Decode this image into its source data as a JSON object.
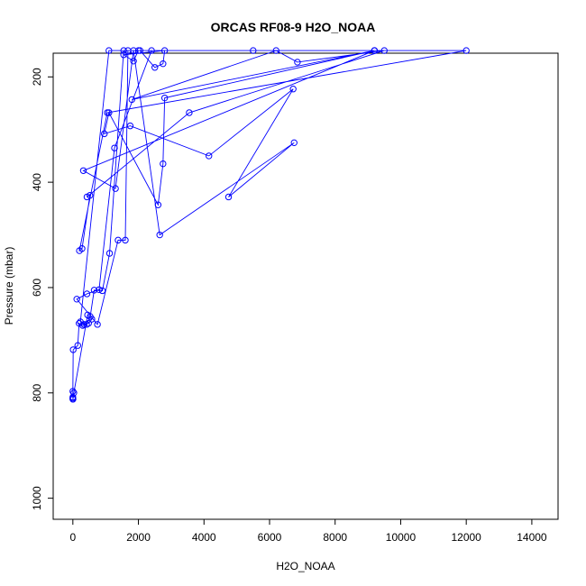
{
  "chart_data": {
    "type": "line",
    "title": "ORCAS RF08-9 H2O_NOAA",
    "xlabel": "H2O_NOAA",
    "ylabel": "Pressure (mbar)",
    "xlim": [
      -600,
      14800
    ],
    "ylim": [
      1040,
      155
    ],
    "y_reversed": true,
    "x_ticks": [
      0,
      2000,
      4000,
      6000,
      8000,
      10000,
      12000,
      14000
    ],
    "y_ticks": [
      200,
      400,
      600,
      800,
      1000
    ],
    "grid": false,
    "legend": "none",
    "series": [
      {
        "color": "#0000ff",
        "marker": "open-circle",
        "points": [
          [
            0,
            812
          ],
          [
            0,
            810
          ],
          [
            0,
            808
          ],
          [
            0,
            797
          ],
          [
            10,
            718
          ],
          [
            150,
            710
          ],
          [
            190,
            668
          ],
          [
            300,
            672
          ],
          [
            420,
            670
          ],
          [
            530,
            655
          ],
          [
            650,
            605
          ],
          [
            900,
            606
          ],
          [
            1120,
            535
          ],
          [
            1550,
            150
          ],
          [
            2050,
            150
          ],
          [
            2500,
            182
          ],
          [
            2750,
            175
          ],
          [
            2800,
            150
          ],
          [
            1550,
            158
          ],
          [
            1850,
            170
          ],
          [
            2000,
            150
          ],
          [
            12000,
            150
          ],
          [
            1050,
            268
          ],
          [
            200,
            530
          ],
          [
            280,
            526
          ],
          [
            520,
            425
          ],
          [
            430,
            428
          ],
          [
            3550,
            268
          ],
          [
            9500,
            150
          ],
          [
            6850,
            172
          ],
          [
            6200,
            150
          ],
          [
            1800,
            243
          ],
          [
            9200,
            150
          ],
          [
            2800,
            240
          ],
          [
            2750,
            365
          ],
          [
            2600,
            443
          ],
          [
            1100,
            268
          ],
          [
            960,
            308
          ],
          [
            1750,
            293
          ],
          [
            4150,
            350
          ],
          [
            6720,
            223
          ],
          [
            4750,
            428
          ],
          [
            6750,
            325
          ],
          [
            2650,
            500
          ],
          [
            1850,
            150
          ],
          [
            1300,
            412
          ],
          [
            320,
            378
          ],
          [
            9200,
            150
          ],
          [
            1680,
            150
          ],
          [
            1600,
            510
          ],
          [
            1380,
            510
          ],
          [
            750,
            670
          ],
          [
            120,
            622
          ],
          [
            430,
            612
          ],
          [
            800,
            604
          ],
          [
            1270,
            335
          ],
          [
            2400,
            150
          ],
          [
            5500,
            150
          ],
          [
            9200,
            150
          ],
          [
            1100,
            150
          ],
          [
            230,
            665
          ],
          [
            340,
            670
          ],
          [
            480,
            668
          ],
          [
            580,
            660
          ],
          [
            450,
            652
          ],
          [
            30,
            800
          ],
          [
            5,
            812
          ]
        ]
      }
    ]
  }
}
